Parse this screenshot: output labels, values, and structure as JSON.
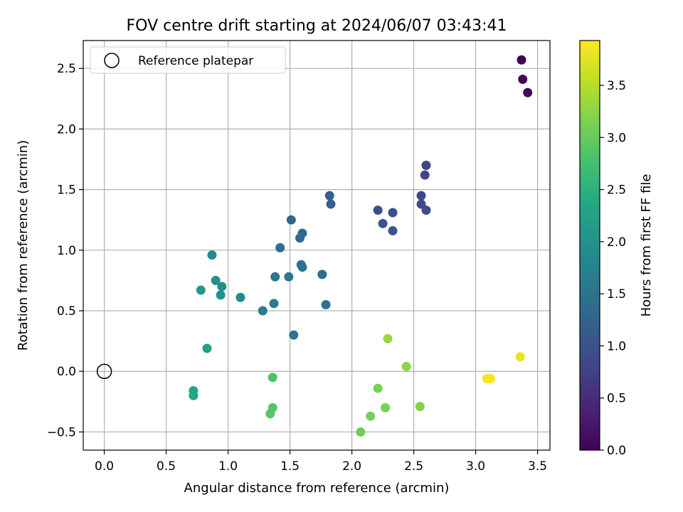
{
  "chart_data": {
    "type": "scatter",
    "title": "FOV centre drift starting at 2024/06/07 03:43:41",
    "xlabel": "Angular distance from reference (arcmin)",
    "ylabel": "Rotation from reference (arcmin)",
    "xlim": [
      -0.17,
      3.6
    ],
    "ylim": [
      -0.65,
      2.73
    ],
    "xticks": [
      0.0,
      0.5,
      1.0,
      1.5,
      2.0,
      2.5,
      3.0,
      3.5
    ],
    "xtick_labels": [
      "0.0",
      "0.5",
      "1.0",
      "1.5",
      "2.0",
      "2.5",
      "3.0",
      "3.5"
    ],
    "yticks": [
      -0.5,
      0.0,
      0.5,
      1.0,
      1.5,
      2.0,
      2.5
    ],
    "ytick_labels": [
      "−0.5",
      "0.0",
      "0.5",
      "1.0",
      "1.5",
      "2.0",
      "2.5"
    ],
    "grid": true,
    "legend": {
      "placement": "upper-left",
      "entries": [
        "Reference platepar"
      ]
    },
    "reference_point": {
      "x": 0.0,
      "y": 0.0
    },
    "colorbar": {
      "label": "Hours from first FF file",
      "colormap": "viridis",
      "range": [
        0.0,
        3.93
      ],
      "ticks": [
        0.0,
        0.5,
        1.0,
        1.5,
        2.0,
        2.5,
        3.0,
        3.5
      ],
      "tick_labels": [
        "0.0",
        "0.5",
        "1.0",
        "1.5",
        "2.0",
        "2.5",
        "3.0",
        "3.5"
      ]
    },
    "points": [
      {
        "x": 3.37,
        "y": 2.57,
        "h": 0.02
      },
      {
        "x": 3.38,
        "y": 2.41,
        "h": 0.05
      },
      {
        "x": 3.42,
        "y": 2.3,
        "h": 0.08
      },
      {
        "x": 2.6,
        "y": 1.7,
        "h": 0.8
      },
      {
        "x": 2.59,
        "y": 1.62,
        "h": 0.83
      },
      {
        "x": 2.56,
        "y": 1.45,
        "h": 0.86
      },
      {
        "x": 2.56,
        "y": 1.38,
        "h": 0.89
      },
      {
        "x": 2.6,
        "y": 1.33,
        "h": 0.92
      },
      {
        "x": 2.21,
        "y": 1.33,
        "h": 0.95
      },
      {
        "x": 2.33,
        "y": 1.31,
        "h": 0.98
      },
      {
        "x": 2.25,
        "y": 1.22,
        "h": 1.01
      },
      {
        "x": 2.33,
        "y": 1.16,
        "h": 1.04
      },
      {
        "x": 1.82,
        "y": 1.45,
        "h": 1.15
      },
      {
        "x": 1.83,
        "y": 1.38,
        "h": 1.18
      },
      {
        "x": 1.51,
        "y": 1.25,
        "h": 1.3
      },
      {
        "x": 1.6,
        "y": 1.14,
        "h": 1.33
      },
      {
        "x": 1.58,
        "y": 1.1,
        "h": 1.36
      },
      {
        "x": 1.42,
        "y": 1.02,
        "h": 1.42
      },
      {
        "x": 1.59,
        "y": 0.88,
        "h": 1.45
      },
      {
        "x": 1.6,
        "y": 0.86,
        "h": 1.48
      },
      {
        "x": 1.76,
        "y": 0.8,
        "h": 1.4
      },
      {
        "x": 1.49,
        "y": 0.78,
        "h": 1.52
      },
      {
        "x": 1.38,
        "y": 0.78,
        "h": 1.56
      },
      {
        "x": 1.79,
        "y": 0.55,
        "h": 1.5
      },
      {
        "x": 1.37,
        "y": 0.56,
        "h": 1.6
      },
      {
        "x": 1.28,
        "y": 0.5,
        "h": 1.66
      },
      {
        "x": 1.53,
        "y": 0.3,
        "h": 1.55
      },
      {
        "x": 1.1,
        "y": 0.61,
        "h": 1.85
      },
      {
        "x": 0.87,
        "y": 0.96,
        "h": 1.9
      },
      {
        "x": 0.9,
        "y": 0.75,
        "h": 1.95
      },
      {
        "x": 0.95,
        "y": 0.7,
        "h": 1.98
      },
      {
        "x": 0.94,
        "y": 0.63,
        "h": 2.01
      },
      {
        "x": 0.78,
        "y": 0.67,
        "h": 2.1
      },
      {
        "x": 0.83,
        "y": 0.19,
        "h": 2.25
      },
      {
        "x": 0.72,
        "y": -0.16,
        "h": 2.3
      },
      {
        "x": 0.72,
        "y": -0.2,
        "h": 2.33
      },
      {
        "x": 1.36,
        "y": -0.05,
        "h": 2.8
      },
      {
        "x": 1.36,
        "y": -0.3,
        "h": 2.85
      },
      {
        "x": 1.34,
        "y": -0.35,
        "h": 2.88
      },
      {
        "x": 2.07,
        "y": -0.5,
        "h": 3.05
      },
      {
        "x": 2.15,
        "y": -0.37,
        "h": 3.1
      },
      {
        "x": 2.21,
        "y": -0.14,
        "h": 3.13
      },
      {
        "x": 2.27,
        "y": -0.3,
        "h": 3.16
      },
      {
        "x": 2.29,
        "y": 0.27,
        "h": 3.33
      },
      {
        "x": 2.44,
        "y": 0.04,
        "h": 3.25
      },
      {
        "x": 2.55,
        "y": -0.29,
        "h": 3.2
      },
      {
        "x": 3.09,
        "y": -0.06,
        "h": 3.85
      },
      {
        "x": 3.11,
        "y": -0.06,
        "h": 3.88
      },
      {
        "x": 3.12,
        "y": -0.06,
        "h": 3.9
      },
      {
        "x": 3.36,
        "y": 0.12,
        "h": 3.8
      }
    ]
  }
}
